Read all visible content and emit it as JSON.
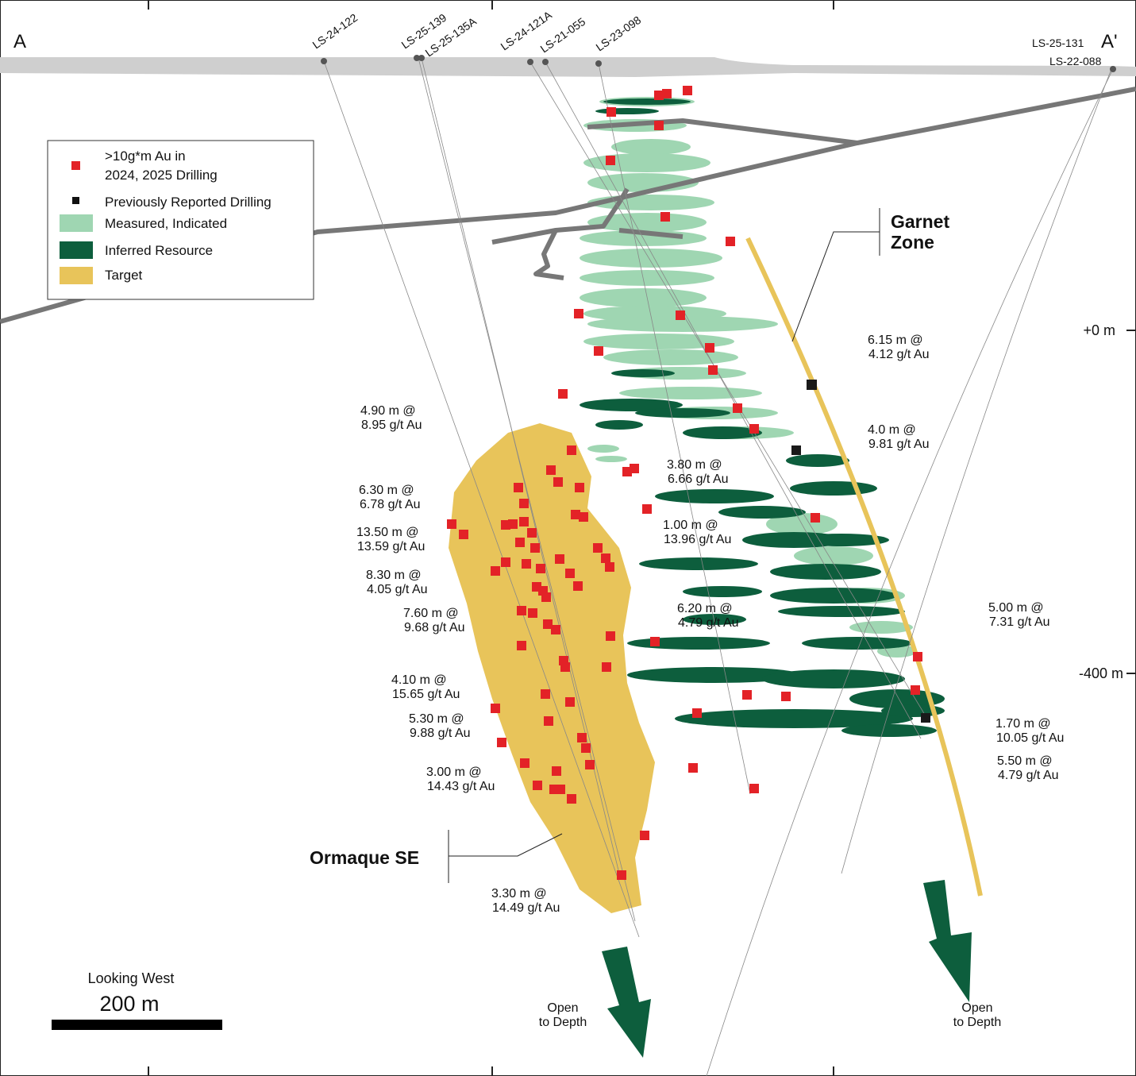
{
  "section_ends": {
    "left": "A",
    "right": "A'"
  },
  "drill_holes": [
    "LS-24-122",
    "LS-25-139",
    "LS-25-135A",
    "LS-24-121A",
    "LS-21-055",
    "LS-23-098",
    "LS-25-131",
    "LS-22-088"
  ],
  "legend": [
    {
      "lines": [
        ">10g*m Au in",
        "2024, 2025 Drilling"
      ]
    },
    {
      "lines": [
        "Previously Reported Drilling"
      ]
    },
    {
      "lines": [
        "Measured, Indicated"
      ]
    },
    {
      "lines": [
        "Inferred Resource"
      ]
    },
    {
      "lines": [
        "Target"
      ]
    }
  ],
  "elevations": [
    "+0 m",
    "-400 m"
  ],
  "zones": [
    {
      "lines": [
        "Garnet",
        "Zone"
      ]
    },
    {
      "lines": [
        "Ormaque SE"
      ]
    }
  ],
  "intercepts": [
    [
      "4.90 m @",
      "8.95 g/t Au"
    ],
    [
      "6.30 m @",
      "6.78 g/t Au"
    ],
    [
      "13.50 m @",
      "13.59 g/t Au"
    ],
    [
      "8.30 m @",
      "4.05 g/t Au"
    ],
    [
      "7.60 m @",
      "9.68 g/t Au"
    ],
    [
      "4.10 m @",
      "15.65 g/t Au"
    ],
    [
      "5.30 m @",
      "9.88 g/t Au"
    ],
    [
      "3.00 m @",
      "14.43 g/t Au"
    ],
    [
      "3.30 m @",
      "14.49 g/t Au"
    ],
    [
      "3.80 m @",
      "6.66 g/t Au"
    ],
    [
      "1.00 m @",
      "13.96 g/t Au"
    ],
    [
      "6.20 m @",
      "4.79 g/t Au"
    ],
    [
      "6.15 m @",
      "4.12 g/t Au"
    ],
    [
      "4.0 m @",
      "9.81 g/t Au"
    ],
    [
      "5.00 m @",
      "7.31 g/t Au"
    ],
    [
      "1.70 m @",
      "10.05 g/t Au"
    ],
    [
      "5.50 m @",
      "4.79 g/t Au"
    ]
  ],
  "scale": {
    "title": "Looking West",
    "length": "200 m"
  },
  "depth_notes": [
    {
      "lines": [
        "Open",
        "to Depth"
      ]
    },
    {
      "lines": [
        "Open",
        "to Depth"
      ]
    }
  ]
}
